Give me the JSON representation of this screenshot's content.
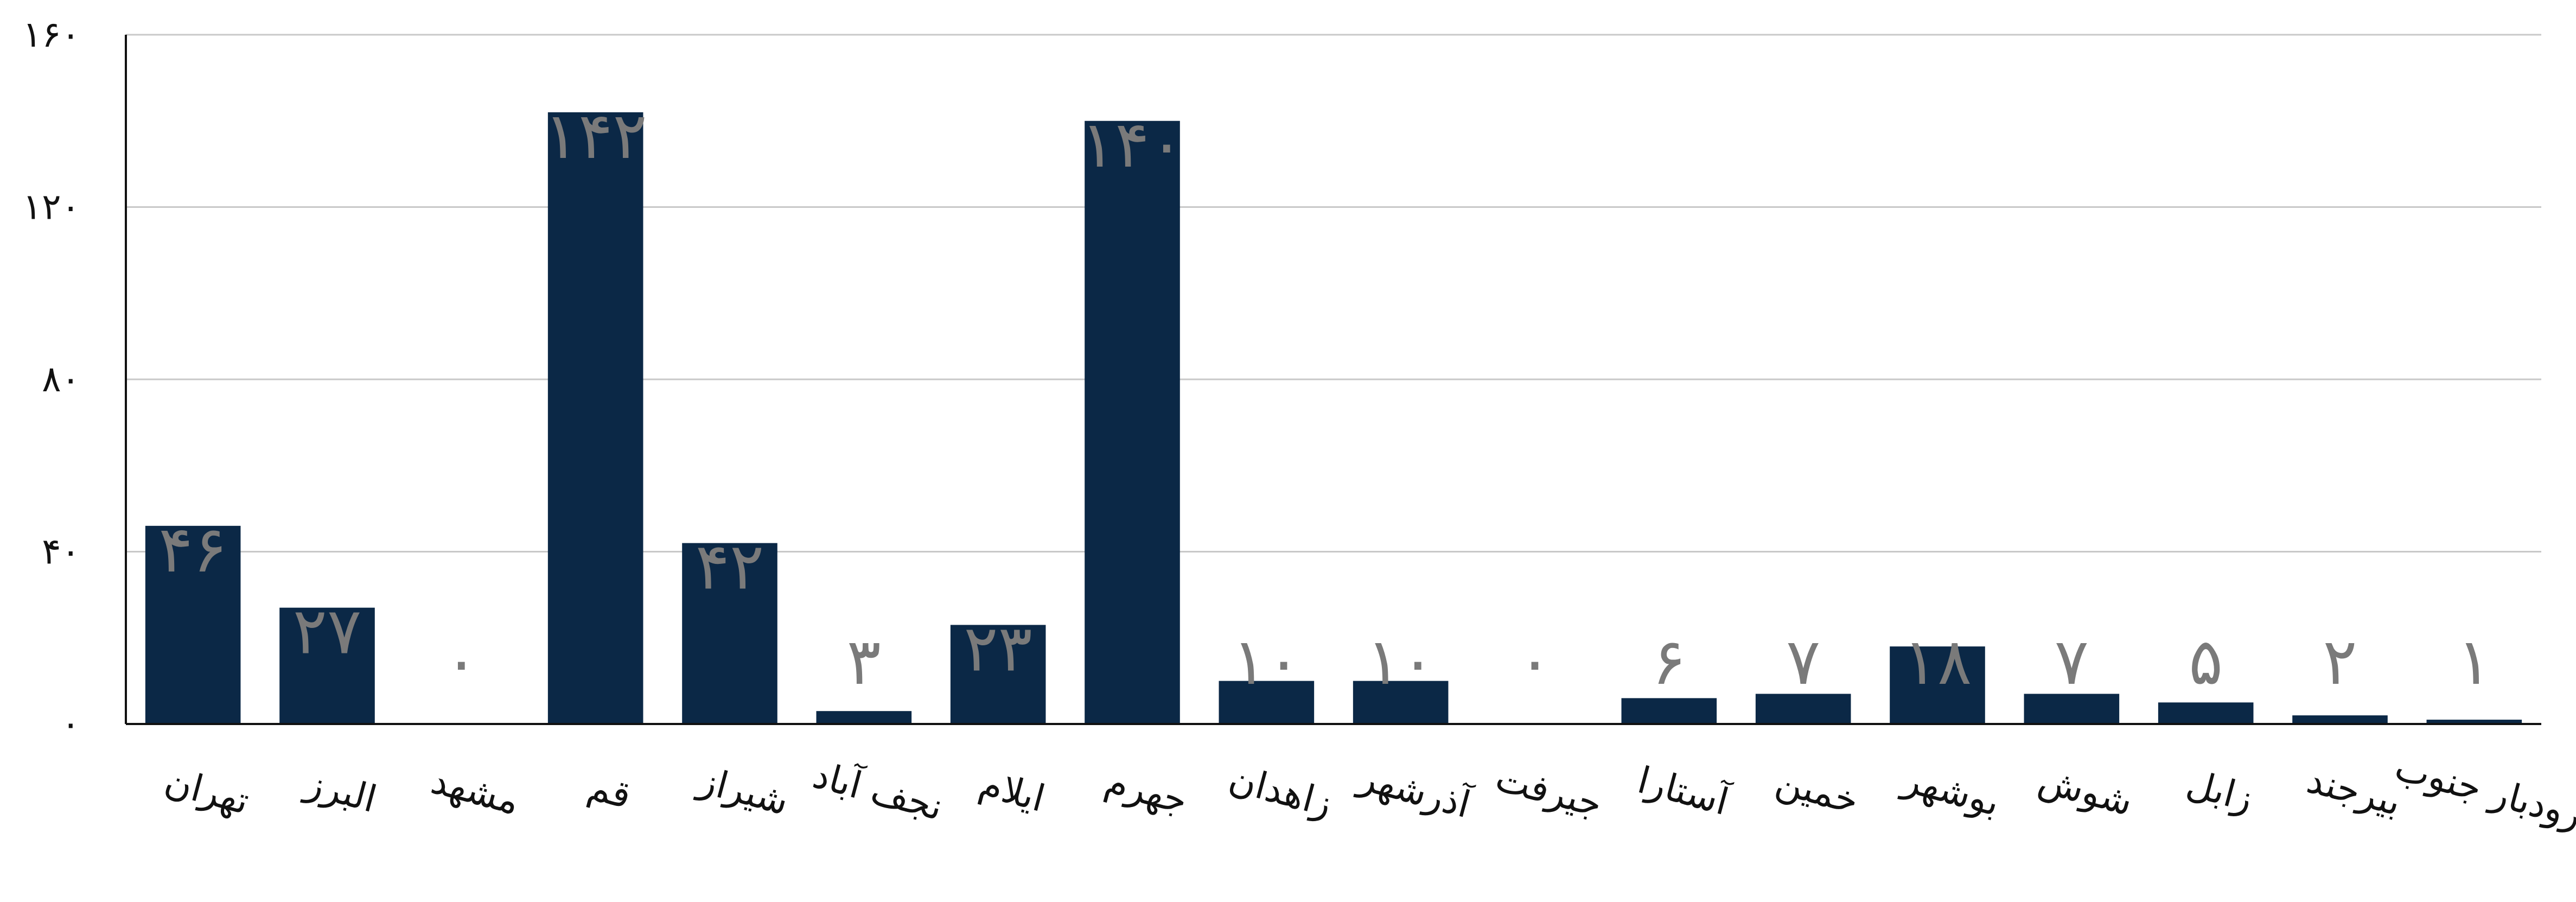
{
  "chart_data": {
    "type": "bar",
    "categories": [
      "تهران",
      "البرز",
      "مشهد",
      "قم",
      "شیراز",
      "نجف آباد",
      "ایلام",
      "جهرم",
      "زاهدان",
      "آذرشهر",
      "جیرفت",
      "آستارا",
      "خمین",
      "بوشهر",
      "شوش",
      "زابل",
      "بیرجند",
      "رودبار جنوب"
    ],
    "values": [
      46,
      27,
      0,
      142,
      42,
      3,
      23,
      140,
      10,
      10,
      0,
      6,
      7,
      18,
      7,
      5,
      2,
      1
    ],
    "value_labels": [
      "۴۶",
      "۲۷",
      "۰",
      "۱۴۲",
      "۴۲",
      "۳",
      "۲۳",
      "۱۴۰",
      "۱۰",
      "۱۰",
      "۰",
      "۶",
      "۷",
      "۱۸",
      "۷",
      "۵",
      "۲",
      "۱"
    ],
    "yticks": [
      0,
      40,
      80,
      120,
      160
    ],
    "ytick_labels": [
      "۰",
      "۴۰",
      "۸۰",
      "۱۲۰",
      "۱۶۰"
    ],
    "ylim": [
      0,
      160
    ],
    "title": "",
    "xlabel": "",
    "ylabel": "",
    "grid": true,
    "legend": "none",
    "colors": {
      "bar": "#0b2846",
      "data_label": "#7a7a7a",
      "gridline": "#c8c8c8",
      "axis": "#111111"
    }
  }
}
